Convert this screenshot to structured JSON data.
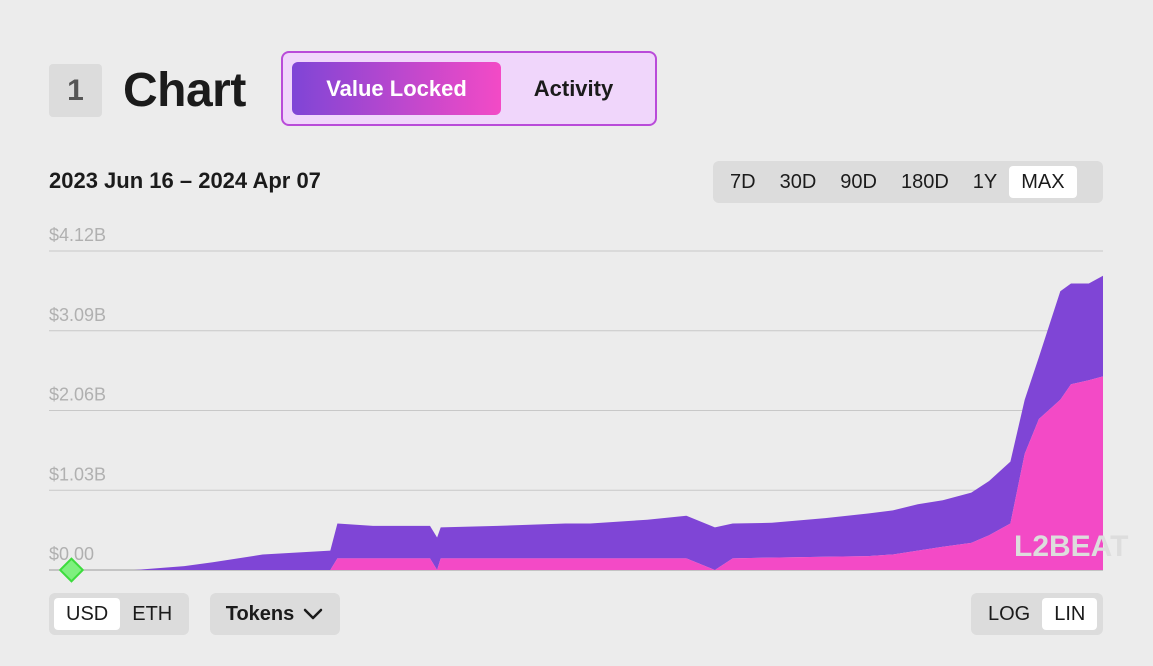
{
  "header": {
    "section_number": "1",
    "title": "Chart"
  },
  "tabs": [
    {
      "label": "Value Locked",
      "active": true
    },
    {
      "label": "Activity",
      "active": false
    }
  ],
  "date_range": "2023 Jun 16 – 2024 Apr 07",
  "time_ranges": [
    {
      "label": "7D",
      "active": false
    },
    {
      "label": "30D",
      "active": false
    },
    {
      "label": "90D",
      "active": false
    },
    {
      "label": "180D",
      "active": false
    },
    {
      "label": "1Y",
      "active": false
    },
    {
      "label": "MAX",
      "active": true
    }
  ],
  "currency_toggle": [
    {
      "label": "USD",
      "active": true
    },
    {
      "label": "ETH",
      "active": false
    }
  ],
  "tokens_button": {
    "label": "Tokens"
  },
  "scale_toggle": [
    {
      "label": "LOG",
      "active": false
    },
    {
      "label": "LIN",
      "active": true
    }
  ],
  "watermark": "L2BEAT",
  "colors": {
    "upper_series": "#7f45d6",
    "lower_series": "#f34ac6",
    "milestone": "#3ddc3d"
  },
  "chart_data": {
    "type": "area",
    "stacked": true,
    "ylim": [
      0,
      4.12
    ],
    "yticks": [
      "$0.00",
      "$1.03B",
      "$2.06B",
      "$3.09B",
      "$4.12B"
    ],
    "grid": true,
    "x": [
      "2023-06-16",
      "2023-07-10",
      "2023-07-24",
      "2023-08-01",
      "2023-08-15",
      "2023-09-03",
      "2023-09-05",
      "2023-09-15",
      "2023-10-01",
      "2023-10-03",
      "2023-10-04",
      "2023-10-20",
      "2023-11-08",
      "2023-11-15",
      "2023-12-01",
      "2023-12-12",
      "2023-12-20",
      "2023-12-25",
      "2024-01-05",
      "2024-01-20",
      "2024-02-01",
      "2024-02-08",
      "2024-02-15",
      "2024-02-22",
      "2024-03-01",
      "2024-03-06",
      "2024-03-12",
      "2024-03-16",
      "2024-03-20",
      "2024-03-26",
      "2024-03-29",
      "2024-04-03",
      "2024-04-07"
    ],
    "series": [
      {
        "values": [
          0,
          0,
          0,
          0,
          0,
          0,
          0.15,
          0.15,
          0.15,
          0,
          0.15,
          0.15,
          0.15,
          0.15,
          0.15,
          0.15,
          0,
          0.15,
          0.16,
          0.17,
          0.18,
          0.2,
          0.25,
          0.3,
          0.35,
          0.45,
          0.6,
          1.5,
          1.95,
          2.2,
          2.4,
          2.45,
          2.5
        ]
      },
      {
        "values": [
          0,
          0,
          0.05,
          0.1,
          0.2,
          0.25,
          0.45,
          0.42,
          0.42,
          0.42,
          0.4,
          0.42,
          0.45,
          0.45,
          0.5,
          0.55,
          0.55,
          0.45,
          0.45,
          0.5,
          0.55,
          0.57,
          0.6,
          0.6,
          0.65,
          0.7,
          0.8,
          0.7,
          0.8,
          1.4,
          1.3,
          1.25,
          1.3
        ]
      }
    ]
  }
}
